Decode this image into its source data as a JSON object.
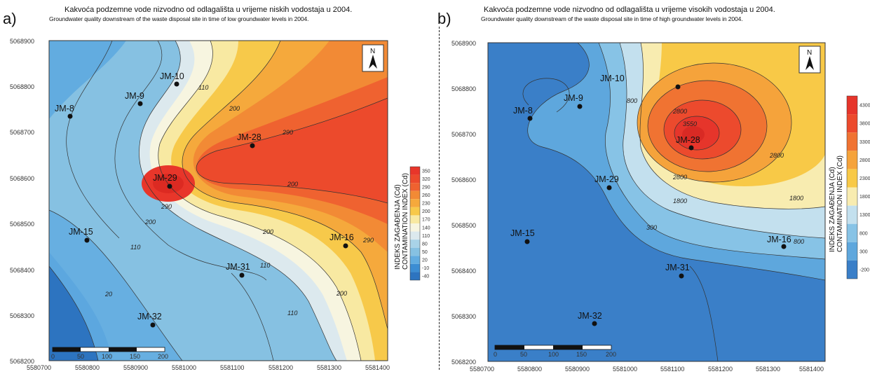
{
  "panels": [
    {
      "letter": "a)",
      "title": "Kakvoća podzemne vode nizvodno od odlagališta u vrijeme niskih vodostaja u 2004.",
      "subtitle": "Groundwater quality downstream of the waste disposal site in time of low groundwater levels in 2004.",
      "y_ticks": [
        "5068900",
        "5068800",
        "5068700",
        "5068600",
        "5068500",
        "5068400",
        "5068300",
        "5068200"
      ],
      "x_ticks": [
        "5580700",
        "5580800",
        "5580900",
        "5581000",
        "5581100",
        "5581200",
        "5581300",
        "5581400"
      ],
      "scale_ticks": [
        "0",
        "50",
        "100",
        "150",
        "200"
      ],
      "north": "N",
      "wells": [
        "JM-10",
        "JM-9",
        "JM-8",
        "JM-28",
        "JM-29",
        "JM-15",
        "JM-16",
        "JM-31",
        "JM-32"
      ],
      "contour_labels": [
        "110",
        "200",
        "290",
        "290",
        "200",
        "200",
        "200",
        "290",
        "110",
        "110",
        "110",
        "200",
        "20"
      ],
      "colorbar_values": [
        "350",
        "320",
        "290",
        "260",
        "230",
        "200",
        "170",
        "140",
        "110",
        "80",
        "50",
        "20",
        "-10",
        "-40"
      ],
      "colorbar_title": "INDEKS ZAGAĐENJA (Cd)",
      "colorbar_subtitle": "CONTAMINATION INDEX (Cd)"
    },
    {
      "letter": "b)",
      "title": "Kakvoća podzemne vode nizvodno od odlagališta u vrijeme visokih vodostaja u 2004.",
      "subtitle": "Groundwater quality downstream of the waste disposal site in time of high groundwater levels in 2004.",
      "y_ticks": [
        "5068900",
        "5068800",
        "5068700",
        "5068600",
        "5068500",
        "5068400",
        "5068300",
        "5068200"
      ],
      "x_ticks": [
        "5580700",
        "5580800",
        "5580900",
        "5581000",
        "5581100",
        "5581200",
        "5581300",
        "5581400"
      ],
      "scale_ticks": [
        "0",
        "50",
        "100",
        "150",
        "200"
      ],
      "north": "N",
      "wells": [
        "JM-10",
        "JM-9",
        "JM-8",
        "JM-28",
        "JM-29",
        "JM-15",
        "JM-16",
        "JM-31",
        "JM-32"
      ],
      "contour_labels": [
        "800",
        "2800",
        "3550",
        "2800",
        "2800",
        "1800",
        "1800",
        "300",
        "800"
      ],
      "colorbar_values": [
        "4300",
        "3800",
        "3300",
        "2800",
        "2300",
        "1800",
        "1300",
        "800",
        "300",
        "-200"
      ],
      "colorbar_title": "INDEKS ZAGAĐENJA (Cd)",
      "colorbar_subtitle": "CONTAMINATION INDEX (Cd)"
    }
  ],
  "colors": {
    "cb_a": [
      "#e8362a",
      "#ec4a2c",
      "#ef6230",
      "#f28a35",
      "#f5a93c",
      "#f7c94a",
      "#f8e9a2",
      "#f7f5e0",
      "#dce9ee",
      "#a9d3e8",
      "#86c1e2",
      "#62ace0",
      "#3c8dd3",
      "#2d74c0"
    ],
    "cb_b": [
      "#e6352b",
      "#ec4a2d",
      "#f07332",
      "#f5a33b",
      "#f8c947",
      "#f8ecb0",
      "#c3e0ee",
      "#87c3e6",
      "#5ea7dd",
      "#3a7fc8"
    ]
  }
}
